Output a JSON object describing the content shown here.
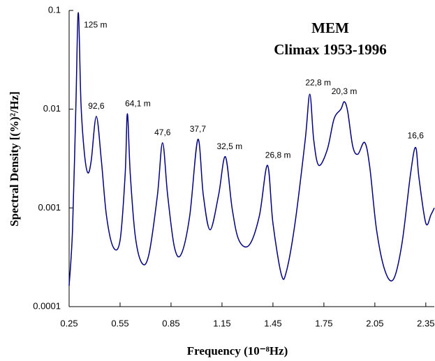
{
  "chart_data": {
    "type": "line",
    "title": "MEM",
    "subtitle": "Climax 1953-1996",
    "x_label": "Frequency (10⁻⁸Hz)",
    "y_label": "Spectral Density [(%)²/Hz]",
    "log_y": true,
    "xlim": [
      0.25,
      2.4
    ],
    "ylim": [
      0.0001,
      0.1
    ],
    "xticks": [
      0.25,
      0.55,
      0.85,
      1.15,
      1.45,
      1.75,
      2.05,
      2.35
    ],
    "yticks": [
      0.1,
      0.01,
      0.001,
      0.0001
    ],
    "x": [
      0.25,
      0.27,
      0.29,
      0.304,
      0.32,
      0.34,
      0.36,
      0.38,
      0.41,
      0.44,
      0.47,
      0.51,
      0.55,
      0.58,
      0.593,
      0.61,
      0.64,
      0.68,
      0.72,
      0.77,
      0.8,
      0.83,
      0.87,
      0.91,
      0.96,
      1.008,
      1.04,
      1.08,
      1.13,
      1.17,
      1.21,
      1.25,
      1.31,
      1.37,
      1.418,
      1.45,
      1.5,
      1.53,
      1.58,
      1.64,
      1.667,
      1.69,
      1.72,
      1.77,
      1.81,
      1.85,
      1.87,
      1.89,
      1.92,
      1.95,
      1.99,
      2.02,
      2.06,
      2.11,
      2.16,
      2.21,
      2.26,
      2.29,
      2.31,
      2.35,
      2.38,
      2.4
    ],
    "series": [
      {
        "name": "MEM spectrum",
        "color": "#000080",
        "values": [
          0.000163,
          0.0006,
          0.0112,
          0.095,
          0.0112,
          0.00357,
          0.00227,
          0.003,
          0.00846,
          0.003,
          0.00083,
          0.0004,
          0.00047,
          0.0022,
          0.009,
          0.0022,
          0.00051,
          0.000274,
          0.00034,
          0.00135,
          0.00457,
          0.00135,
          0.0004,
          0.00034,
          0.00083,
          0.00494,
          0.00135,
          0.0006,
          0.00135,
          0.0033,
          0.00098,
          0.00047,
          0.00042,
          0.00083,
          0.0027,
          0.0007,
          0.00021,
          0.00023,
          0.0007,
          0.0049,
          0.0142,
          0.0049,
          0.0027,
          0.0039,
          0.008,
          0.01,
          0.0119,
          0.0095,
          0.0042,
          0.0035,
          0.0046,
          0.0026,
          0.0006,
          0.00023,
          0.00019,
          0.00044,
          0.0022,
          0.0041,
          0.002,
          0.0007,
          0.00085,
          0.001
        ]
      }
    ],
    "annotations": [
      {
        "text": "125 m",
        "x": 0.304,
        "y": 0.095
      },
      {
        "text": "92,6",
        "x": 0.41,
        "y": 0.00846
      },
      {
        "text": "64,1 m",
        "x": 0.593,
        "y": 0.009
      },
      {
        "text": "47,6",
        "x": 0.8,
        "y": 0.00457
      },
      {
        "text": "37,7",
        "x": 1.008,
        "y": 0.00494
      },
      {
        "text": "32,5 m",
        "x": 1.17,
        "y": 0.0033
      },
      {
        "text": "26,8 m",
        "x": 1.418,
        "y": 0.0027
      },
      {
        "text": "22,8 m",
        "x": 1.667,
        "y": 0.0142
      },
      {
        "text": "20,3 m",
        "x": 1.87,
        "y": 0.0119
      },
      {
        "text": "16,6",
        "x": 2.29,
        "y": 0.0041
      }
    ]
  }
}
